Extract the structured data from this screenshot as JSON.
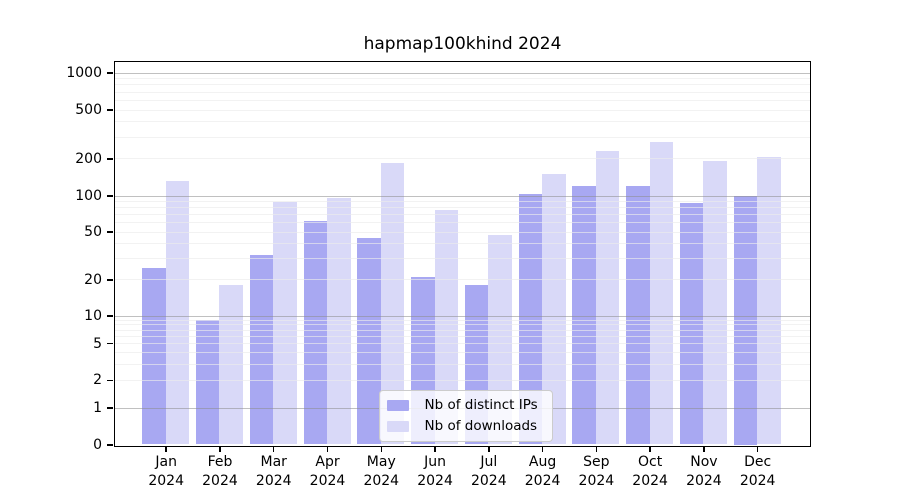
{
  "chart_data": {
    "type": "bar",
    "title": "hapmap100khind 2024",
    "categories": [
      "Jan 2024",
      "Feb 2024",
      "Mar 2024",
      "Apr 2024",
      "May 2024",
      "Jun 2024",
      "Jul 2024",
      "Aug 2024",
      "Sep 2024",
      "Oct 2024",
      "Nov 2024",
      "Dec 2024"
    ],
    "series": [
      {
        "name": "Nb of distinct IPs",
        "color": "#a8a8f2",
        "values": [
          25,
          9,
          32,
          61,
          44,
          21,
          18,
          102,
          120,
          120,
          86,
          100
        ]
      },
      {
        "name": "Nb of downloads",
        "color": "#d9d9f8",
        "values": [
          130,
          18,
          88,
          96,
          185,
          75,
          47,
          150,
          228,
          270,
          190,
          207
        ]
      }
    ],
    "xlabel": "",
    "ylabel": "",
    "y_scale": "symlog",
    "y_ticks": [
      0,
      1,
      2,
      5,
      10,
      20,
      50,
      100,
      200,
      500,
      1000
    ],
    "ylim": [
      0,
      1230
    ],
    "grid": "both",
    "legend_position": "lower center",
    "colors": {
      "major_grid": "#c0c0c0",
      "minor_grid": "#f2f2f2",
      "spine": "#000000",
      "background": "#ffffff"
    }
  }
}
